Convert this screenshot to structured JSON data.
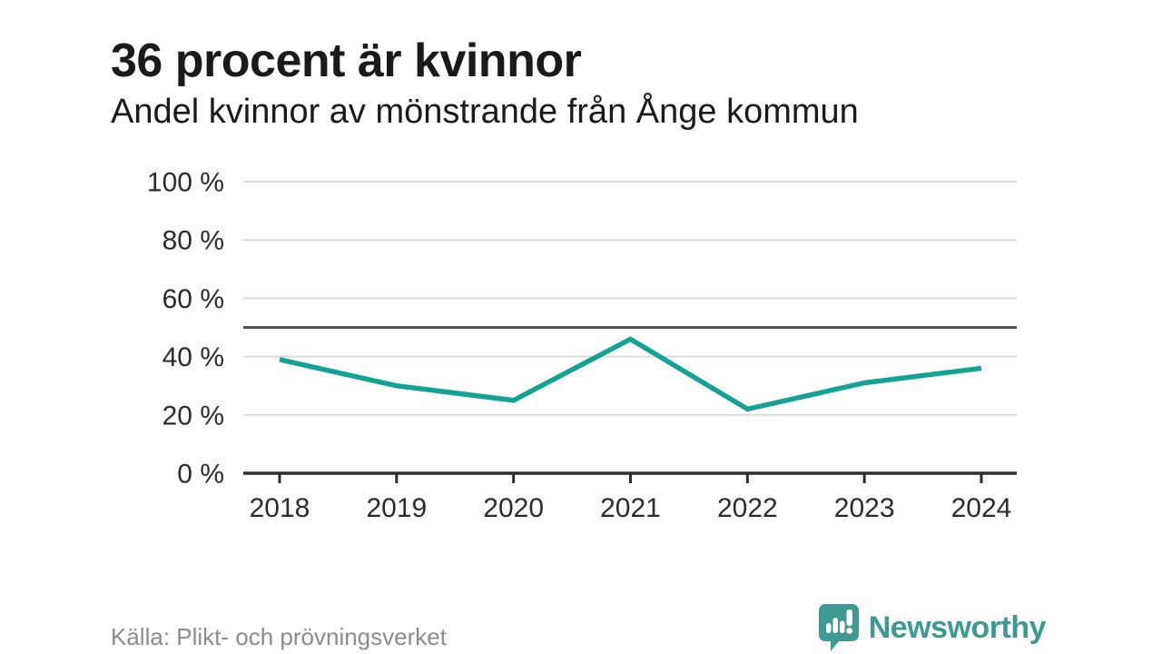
{
  "header": {
    "title": "36 procent är kvinnor",
    "subtitle": "Andel kvinnor av mönstrande från Ånge kommun"
  },
  "chart_data": {
    "type": "line",
    "title": "Andel kvinnor av mönstrande från Ånge kommun",
    "categories": [
      "2018",
      "2019",
      "2020",
      "2021",
      "2022",
      "2023",
      "2024"
    ],
    "series": [
      {
        "name": "Andel kvinnor av mönstrande",
        "values": [
          39,
          30,
          25,
          46,
          22,
          31,
          36
        ],
        "unit": "%"
      }
    ],
    "xlabel": "",
    "ylabel": "",
    "ylim": [
      0,
      100
    ],
    "y_ticks": [
      0,
      20,
      40,
      60,
      80,
      100
    ],
    "y_tick_labels": [
      "0 %",
      "20 %",
      "40 %",
      "60 %",
      "80 %",
      "100 %"
    ],
    "reference_line": 50,
    "grid": true,
    "legend": false
  },
  "footer": {
    "source": "Källa: Plikt- och prövningsverket",
    "brand": "Newsworthy"
  },
  "colors": {
    "line": "#12a296",
    "grid": "#dcdcdc",
    "reference_line": "#4f4f4f",
    "axis": "#2e2e2e",
    "axis_text": "#2b2b2b",
    "title_text": "#1a1a1a",
    "source_text": "#8c8c8c",
    "brand_teal": "#3b9a92"
  }
}
